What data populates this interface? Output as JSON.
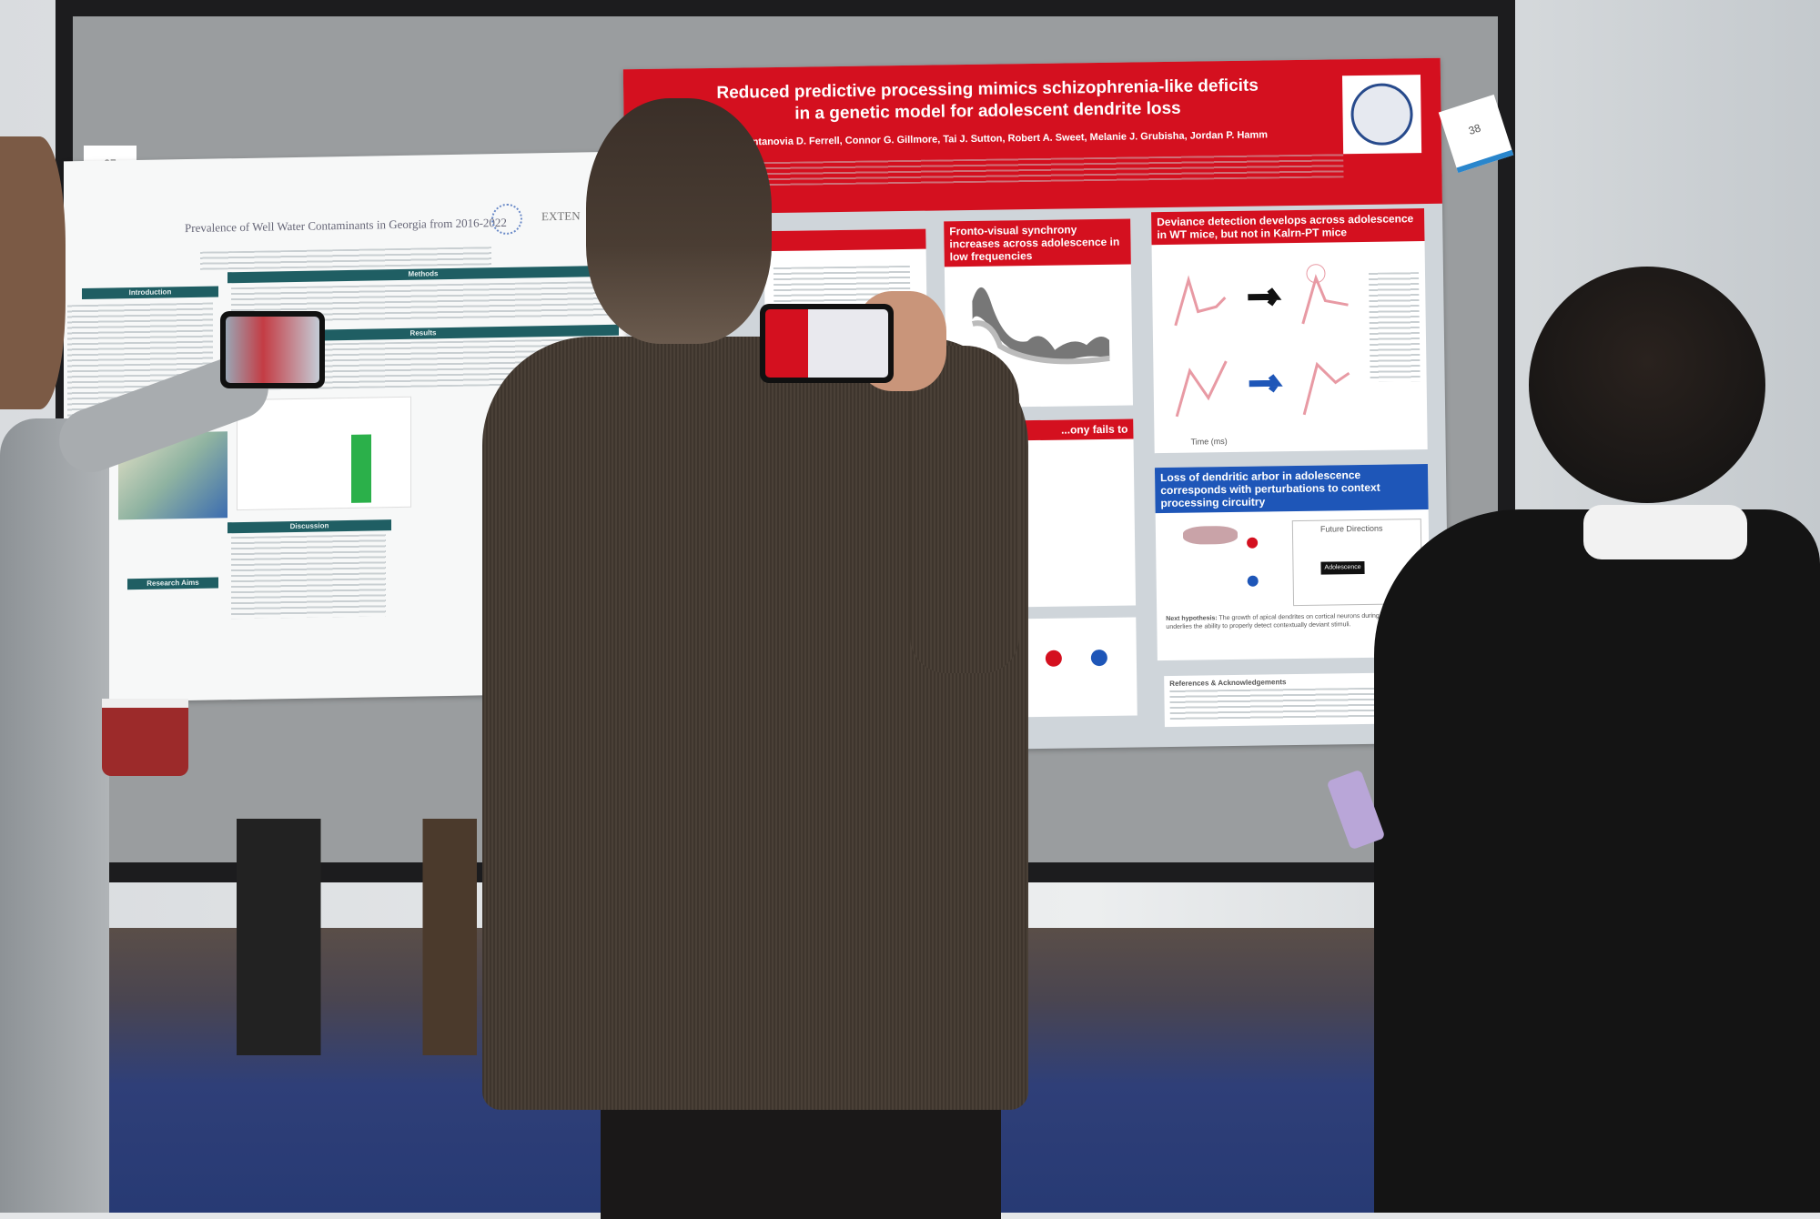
{
  "scene": "poster session",
  "tags": {
    "left": "37",
    "right": "38"
  },
  "poster_left": {
    "title": "Prevalence of Well Water Contaminants in Georgia from 2016-2022",
    "logo_text": "EXTEN",
    "sections": [
      "Introduction",
      "Methods",
      "Results",
      "Discussion",
      "Research Aims"
    ]
  },
  "poster_right": {
    "title_line1": "Reduced predictive processing mimics schizophrenia-like deficits",
    "title_line2": "in a genetic model for adolescent dendrite loss",
    "authors": "Antanovia D. Ferrell, Connor G. Gillmore, Tai J. Sutton, Robert A. Sweet, Melanie J. Grubisha, Jordan P. Hamm",
    "panels": {
      "fronto_visual": "Fronto-visual synchrony increases across adolescence in low frequencies",
      "deviance": "Deviance detection develops across adolescence in WT mice, but not in Kalrn-PT mice",
      "fails": "...ony fails to",
      "dendritic": "Loss of dendritic arbor in adolescence corresponds with perturbations to context processing circuitry",
      "future_directions": "Future Directions",
      "adolescence_label": "Adolescence",
      "next_hypothesis_label": "Next hypothesis:",
      "next_hypothesis": "The growth of apical dendrites on cortical neurons during adolescence underlies the ability to properly detect contextually deviant stimuli.",
      "references": "References & Acknowledgements",
      "time_label": "Time (ms)"
    },
    "colors": {
      "header": "#d4101f",
      "blue_panel": "#1e56b8"
    }
  }
}
